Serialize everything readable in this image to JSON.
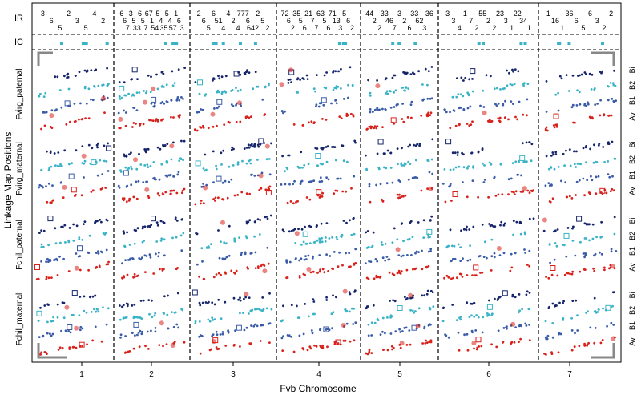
{
  "chart_data": {
    "type": "scatter",
    "title": "",
    "xlabel": "Fvb Chromosome",
    "ylabel": "Linkage Map Positions",
    "x_tick_labels": [
      "1",
      "2",
      "3",
      "4",
      "5",
      "6",
      "7"
    ],
    "row_labels": [
      "IR",
      "IC"
    ],
    "panel_labels": [
      "Fvirg_paternal",
      "Fvirg_maternal",
      "Fchil_paternal",
      "Fchil_maternal"
    ],
    "track_labels": [
      "Bi",
      "B2",
      "B1",
      "Av"
    ],
    "chromosome_lengths_mb": [
      24,
      29,
      24,
      33,
      30,
      38,
      23
    ],
    "colors": {
      "Bi": "#15246b",
      "B2": "#3bb3c7",
      "B1": "#3a5ca8",
      "Av": "#d8211b",
      "annotation_box_fill": "#d8211b"
    },
    "series": [
      {
        "name": "Bi",
        "panel_offsets": [
          0.0,
          0.0,
          0.0,
          0.0
        ]
      },
      {
        "name": "B2",
        "panel_offsets": [
          0.25,
          0.25,
          0.25,
          0.25
        ]
      },
      {
        "name": "B1",
        "panel_offsets": [
          0.5,
          0.5,
          0.5,
          0.5
        ]
      },
      {
        "name": "Av",
        "panel_offsets": [
          0.75,
          0.75,
          0.75,
          0.75
        ]
      }
    ],
    "ir_annotations": [
      {
        "chromosome": 1,
        "labels": [
          "3",
          "6",
          "5",
          "2",
          "3",
          "5",
          "4",
          "2"
        ]
      },
      {
        "chromosome": 2,
        "labels": [
          "6",
          "6",
          "7",
          "3",
          "5",
          "33",
          "6",
          "5",
          "7",
          "67",
          "1",
          "54",
          "5",
          "4",
          "35",
          "5",
          "4",
          "57",
          "1",
          "6",
          "3"
        ]
      },
      {
        "chromosome": 3,
        "labels": [
          "2",
          "6",
          "5",
          "6",
          "51",
          "4",
          "4",
          "2",
          "4",
          "777",
          "6",
          "642",
          "2",
          "5",
          "2"
        ]
      },
      {
        "chromosome": 4,
        "labels": [
          "72",
          "6",
          "2",
          "35",
          "5",
          "6",
          "21",
          "7",
          "7",
          "63",
          "5",
          "6",
          "71",
          "13",
          "3",
          "5",
          "6",
          "2"
        ]
      },
      {
        "chromosome": 5,
        "labels": [
          "44",
          "2",
          "2",
          "33",
          "46",
          "7",
          "3",
          "2",
          "6",
          "33",
          "62",
          "3",
          "36"
        ]
      },
      {
        "chromosome": 6,
        "labels": [
          "3",
          "3",
          "4",
          "1",
          "7",
          "2",
          "55",
          "2",
          "2",
          "23",
          "3",
          "1",
          "22",
          "34",
          "1"
        ]
      },
      {
        "chromosome": 7,
        "labels": [
          "1",
          "16",
          "1",
          "36",
          "6",
          "5",
          "6",
          "3",
          "2",
          "2"
        ]
      }
    ]
  }
}
